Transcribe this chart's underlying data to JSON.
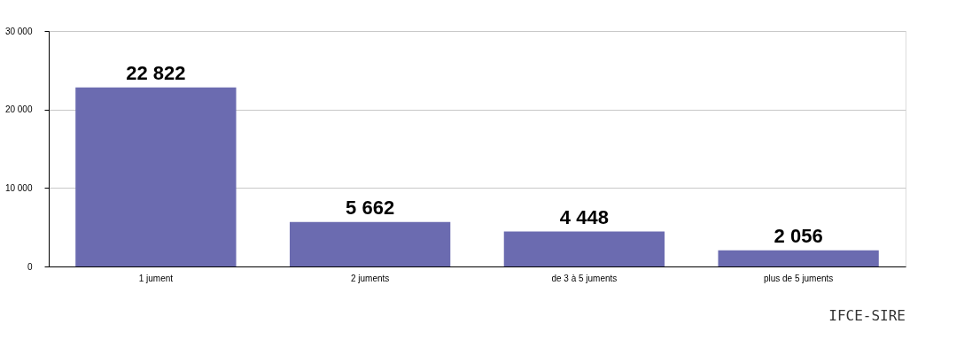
{
  "chart_data": {
    "type": "bar",
    "categories": [
      "1 jument",
      "2 juments",
      "de 3 à 5 juments",
      "plus de 5 juments"
    ],
    "values": [
      22822,
      5662,
      4448,
      2056
    ],
    "value_labels": [
      "22 822",
      "5 662",
      "4 448",
      "2 056"
    ],
    "color": "#6b6bb0",
    "ylim": [
      0,
      30000
    ],
    "yticks": [
      {
        "value": 0,
        "label": "0"
      },
      {
        "value": 10000,
        "label": "10 000"
      },
      {
        "value": 20000,
        "label": "20 000"
      },
      {
        "value": 30000,
        "label": "30 000"
      }
    ],
    "grid": "y",
    "annotations": [
      "IFCE-SIRE"
    ]
  }
}
